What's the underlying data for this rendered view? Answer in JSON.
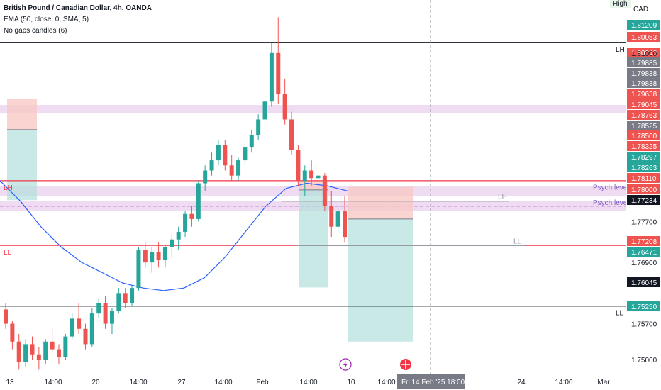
{
  "header": {
    "title": "British Pound / Canadian Dollar, 4h, OANDA",
    "indicator": "EMA (50, close, 0, SMA, 5)",
    "extra": "No gaps candles (6)"
  },
  "top_right": {
    "high_label": "High",
    "currency": "CAD"
  },
  "chart_data": {
    "type": "candlestick",
    "symbol": "GBPCAD",
    "timeframe": "4h",
    "ylim": [
      1.7475,
      1.819
    ],
    "y_ticks": [
      1.81,
      1.777,
      1.769,
      1.757,
      1.75
    ],
    "x_ticks": [
      "13",
      "14:00",
      "20",
      "14:00",
      "27",
      "14:00",
      "Feb",
      "14:00",
      "10",
      "14:00",
      "24",
      "14:00",
      "Mar"
    ],
    "crosshair_label": "Fri 14 Feb '25   18:00",
    "price_tags": [
      {
        "value": "1.81209",
        "color": "#26a69a"
      },
      {
        "value": "1.80053",
        "color": "#ef5350"
      },
      {
        "value": "1.80040",
        "color": "#ef5350"
      },
      {
        "value": "1.79885",
        "color": "#787b86"
      },
      {
        "value": "1.79838",
        "color": "#787b86"
      },
      {
        "value": "1.79838",
        "color": "#787b86"
      },
      {
        "value": "1.79638",
        "color": "#ef5350"
      },
      {
        "value": "1.79045",
        "color": "#ef5350"
      },
      {
        "value": "1.78763",
        "color": "#ef5350"
      },
      {
        "value": "1.78525",
        "color": "#787b86"
      },
      {
        "value": "1.78500",
        "color": "#ef5350"
      },
      {
        "value": "1.78325",
        "color": "#ef5350"
      },
      {
        "value": "1.78297",
        "color": "#26a69a"
      },
      {
        "value": "1.78263",
        "color": "#26a69a"
      },
      {
        "value": "1.78110",
        "color": "#ef5350"
      },
      {
        "value": "1.78000",
        "color": "#ef5350"
      },
      {
        "value": "1.77234",
        "color": "#131722"
      },
      {
        "value": "1.77208",
        "color": "#ef5350"
      },
      {
        "value": "1.76471",
        "color": "#26a69a"
      },
      {
        "value": "1.76045",
        "color": "#131722"
      },
      {
        "value": "1.75250",
        "color": "#26a69a"
      }
    ],
    "horizontal_lines": [
      {
        "price": 1.81209,
        "label": "LH",
        "color": "#131722"
      },
      {
        "price": 1.785,
        "label": "LH",
        "color": "#f23645"
      },
      {
        "price": 1.77234,
        "label": "LL",
        "color": "#f23645"
      },
      {
        "price": 1.76045,
        "label": "LL",
        "color": "#131722"
      }
    ],
    "psych_levels": [
      {
        "price": 1.78297,
        "label": "Psych level"
      },
      {
        "price": 1.78,
        "label": "Psych level"
      }
    ],
    "segment_labels": [
      "LH",
      "LL"
    ],
    "trade_boxes": [
      {
        "entry": 1.795,
        "stop": 1.801,
        "target": 1.7812
      },
      {
        "entry": 1.7832,
        "stop": 1.7849,
        "target": 1.7641
      },
      {
        "entry": 1.7775,
        "stop": 1.7838,
        "target": 1.7535
      }
    ],
    "candles": [
      [
        1.7598,
        1.761,
        1.756,
        1.757
      ],
      [
        1.757,
        1.7575,
        1.752,
        1.7535
      ],
      [
        1.7535,
        1.755,
        1.748,
        1.7495
      ],
      [
        1.7495,
        1.754,
        1.7485,
        1.753
      ],
      [
        1.753,
        1.7545,
        1.75,
        1.751
      ],
      [
        1.751,
        1.7525,
        1.748,
        1.75
      ],
      [
        1.75,
        1.754,
        1.749,
        1.7535
      ],
      [
        1.7535,
        1.756,
        1.751,
        1.752
      ],
      [
        1.752,
        1.753,
        1.749,
        1.7505
      ],
      [
        1.7505,
        1.755,
        1.75,
        1.7545
      ],
      [
        1.7545,
        1.759,
        1.754,
        1.758
      ],
      [
        1.758,
        1.761,
        1.755,
        1.756
      ],
      [
        1.756,
        1.757,
        1.752,
        1.753
      ],
      [
        1.753,
        1.76,
        1.7525,
        1.759
      ],
      [
        1.759,
        1.762,
        1.758,
        1.761
      ],
      [
        1.761,
        1.7625,
        1.756,
        1.757
      ],
      [
        1.757,
        1.76,
        1.755,
        1.7595
      ],
      [
        1.7595,
        1.764,
        1.759,
        1.763
      ],
      [
        1.763,
        1.764,
        1.76,
        1.761
      ],
      [
        1.761,
        1.7645,
        1.7605,
        1.764
      ],
      [
        1.764,
        1.772,
        1.7635,
        1.7715
      ],
      [
        1.7715,
        1.773,
        1.768,
        1.769
      ],
      [
        1.769,
        1.772,
        1.767,
        1.771
      ],
      [
        1.771,
        1.773,
        1.768,
        1.7695
      ],
      [
        1.7695,
        1.7725,
        1.768,
        1.772
      ],
      [
        1.772,
        1.7745,
        1.77,
        1.7735
      ],
      [
        1.7735,
        1.776,
        1.7715,
        1.775
      ],
      [
        1.775,
        1.779,
        1.774,
        1.7785
      ],
      [
        1.7785,
        1.78,
        1.776,
        1.7775
      ],
      [
        1.7775,
        1.785,
        1.777,
        1.7845
      ],
      [
        1.7845,
        1.788,
        1.783,
        1.787
      ],
      [
        1.787,
        1.7905,
        1.786,
        1.789
      ],
      [
        1.789,
        1.793,
        1.788,
        1.792
      ],
      [
        1.792,
        1.793,
        1.787,
        1.788
      ],
      [
        1.788,
        1.79,
        1.785,
        1.786
      ],
      [
        1.786,
        1.7895,
        1.785,
        1.789
      ],
      [
        1.789,
        1.7925,
        1.788,
        1.7915
      ],
      [
        1.7915,
        1.795,
        1.7905,
        1.794
      ],
      [
        1.794,
        1.798,
        1.793,
        1.797
      ],
      [
        1.797,
        1.801,
        1.796,
        1.8005
      ],
      [
        1.8005,
        1.812,
        1.7995,
        1.81
      ],
      [
        1.81,
        1.817,
        1.8,
        1.802
      ],
      [
        1.802,
        1.805,
        1.796,
        1.797
      ],
      [
        1.797,
        1.7985,
        1.79,
        1.791
      ],
      [
        1.791,
        1.792,
        1.784,
        1.785
      ],
      [
        1.785,
        1.788,
        1.782,
        1.787
      ],
      [
        1.787,
        1.789,
        1.784,
        1.7855
      ],
      [
        1.7855,
        1.788,
        1.783,
        1.786
      ],
      [
        1.786,
        1.7865,
        1.779,
        1.78
      ],
      [
        1.78,
        1.783,
        1.774,
        1.776
      ],
      [
        1.776,
        1.78,
        1.775,
        1.779
      ],
      [
        1.779,
        1.782,
        1.773,
        1.774
      ]
    ],
    "ema_values": [
      1.785,
      1.781,
      1.776,
      1.772,
      1.769,
      1.767,
      1.765,
      1.764,
      1.7635,
      1.764,
      1.766,
      1.77,
      1.775,
      1.78,
      1.7835,
      1.7845,
      1.784,
      1.783
    ]
  }
}
